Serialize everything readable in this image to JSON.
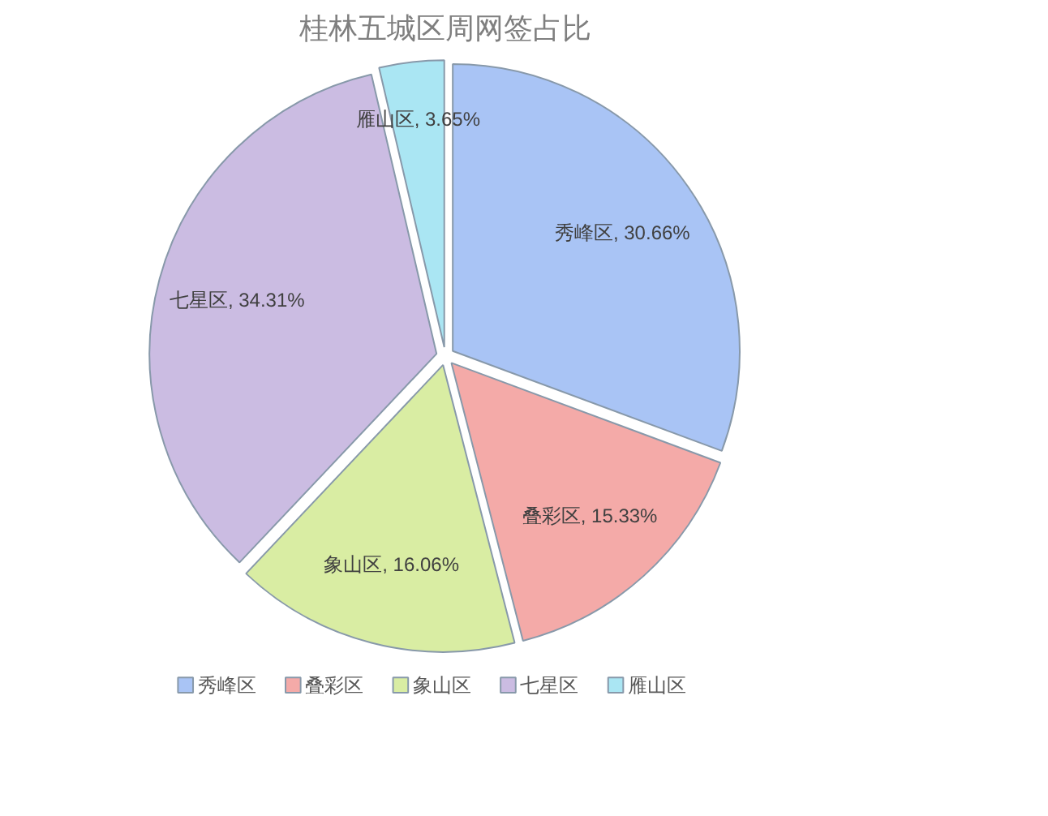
{
  "chart_data": {
    "type": "pie",
    "title": "桂林五城区周网签占比",
    "categories": [
      "秀峰区",
      "叠彩区",
      "象山区",
      "七星区",
      "雁山区"
    ],
    "values": [
      30.66,
      15.33,
      16.06,
      34.31,
      3.65
    ],
    "value_labels": [
      "秀峰区, 30.66%",
      "叠彩区, 15.33%",
      "象山区, 16.06%",
      "七星区, 34.31%",
      "雁山区, 3.65%"
    ],
    "colors": [
      "#a9c4f5",
      "#f4aaa8",
      "#d9eda3",
      "#cbbce2",
      "#aae6f3"
    ],
    "legend": "bottom"
  }
}
